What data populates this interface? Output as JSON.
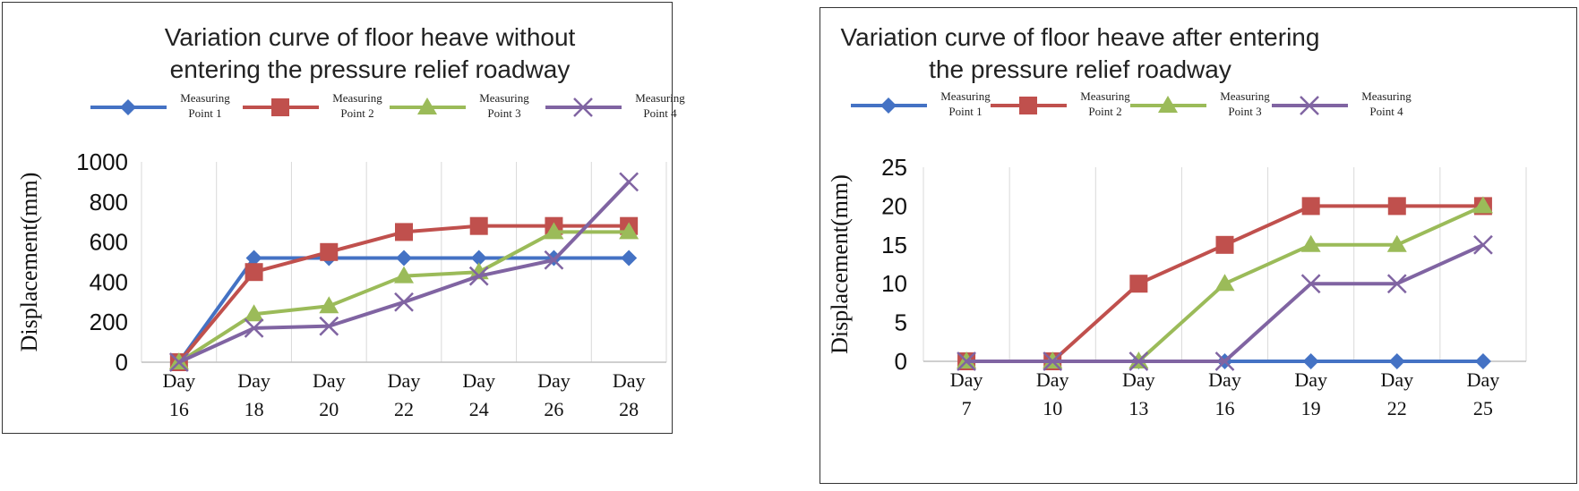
{
  "chart_data": [
    {
      "type": "line",
      "title_lines": [
        "Variation curve of floor heave without",
        "entering the pressure relief roadway"
      ],
      "ylabel": "Displacement(mm)",
      "xlabel": "",
      "categories": [
        [
          "Day",
          "16"
        ],
        [
          "Day",
          "18"
        ],
        [
          "Day",
          "20"
        ],
        [
          "Day",
          "22"
        ],
        [
          "Day",
          "24"
        ],
        [
          "Day",
          "26"
        ],
        [
          "Day",
          "28"
        ]
      ],
      "ylim": [
        0,
        1000
      ],
      "yticks": [
        "0",
        "200",
        "400",
        "600",
        "800",
        "1000"
      ],
      "grid": "vertical",
      "legend_position": "top",
      "series": [
        {
          "name": [
            "Measuring",
            "Point 1"
          ],
          "color": "#4472c4",
          "marker": "diamond",
          "values": [
            0,
            520,
            520,
            520,
            520,
            520,
            520
          ]
        },
        {
          "name": [
            "Measuring",
            "Point 2"
          ],
          "color": "#c0504d",
          "marker": "square",
          "values": [
            0,
            450,
            550,
            650,
            680,
            680,
            680
          ]
        },
        {
          "name": [
            "Measuring",
            "Point 3"
          ],
          "color": "#9bbb59",
          "marker": "triangle",
          "values": [
            0,
            240,
            280,
            430,
            450,
            650,
            650
          ]
        },
        {
          "name": [
            "Measuring",
            "Point 4"
          ],
          "color": "#8064a2",
          "marker": "x",
          "values": [
            0,
            170,
            180,
            300,
            430,
            510,
            900
          ]
        }
      ]
    },
    {
      "type": "line",
      "title_lines": [
        "Variation curve of floor heave after entering",
        "the pressure relief roadway"
      ],
      "ylabel": "Displacement(mm)",
      "xlabel": "",
      "categories": [
        [
          "Day",
          "7"
        ],
        [
          "Day",
          "10"
        ],
        [
          "Day",
          "13"
        ],
        [
          "Day",
          "16"
        ],
        [
          "Day",
          "19"
        ],
        [
          "Day",
          "22"
        ],
        [
          "Day",
          "25"
        ]
      ],
      "ylim": [
        0,
        25
      ],
      "yticks": [
        "0",
        "5",
        "10",
        "15",
        "20",
        "25"
      ],
      "grid": "vertical",
      "legend_position": "top",
      "series": [
        {
          "name": [
            "Measuring",
            "Point 1"
          ],
          "color": "#4472c4",
          "marker": "diamond",
          "values": [
            0,
            0,
            0,
            0,
            0,
            0,
            0
          ]
        },
        {
          "name": [
            "Measuring",
            "Point 2"
          ],
          "color": "#c0504d",
          "marker": "square",
          "values": [
            0,
            0,
            10,
            15,
            20,
            20,
            20
          ]
        },
        {
          "name": [
            "Measuring",
            "Point 3"
          ],
          "color": "#9bbb59",
          "marker": "triangle",
          "values": [
            0,
            0,
            0,
            10,
            15,
            15,
            20
          ]
        },
        {
          "name": [
            "Measuring",
            "Point 4"
          ],
          "color": "#8064a2",
          "marker": "x",
          "values": [
            0,
            0,
            0,
            0,
            10,
            10,
            15
          ]
        }
      ]
    }
  ]
}
